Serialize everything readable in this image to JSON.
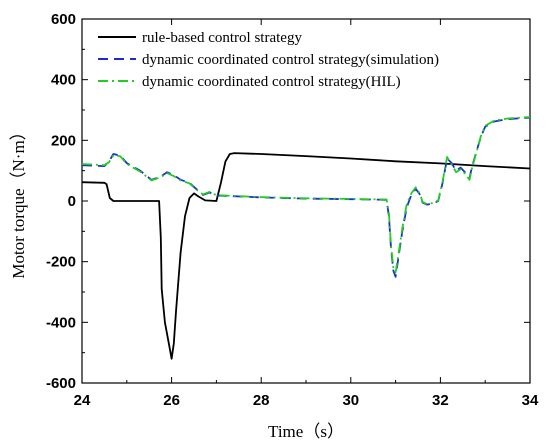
{
  "chart_data": {
    "type": "line",
    "xlabel": "Time（s）",
    "ylabel": "Motor torque（N·m）",
    "xlim": [
      24,
      34
    ],
    "ylim": [
      -600,
      600
    ],
    "xticks": [
      24,
      26,
      28,
      30,
      32,
      34
    ],
    "yticks": [
      -600,
      -400,
      -200,
      0,
      200,
      400,
      600
    ],
    "xtick_labels": [
      "24",
      "26",
      "28",
      "30",
      "32",
      "34"
    ],
    "ytick_labels": [
      "-600",
      "-400",
      "-200",
      "0",
      "200",
      "400",
      "600"
    ],
    "grid": false,
    "legend_position": "top-left",
    "series": [
      {
        "name": "rule-based control strategy",
        "color": "#000000",
        "style": "solid",
        "points": [
          [
            24,
            62
          ],
          [
            24.5,
            60
          ],
          [
            24.55,
            55
          ],
          [
            24.62,
            10
          ],
          [
            24.7,
            0
          ],
          [
            25.0,
            0
          ],
          [
            25.5,
            0
          ],
          [
            25.72,
            0
          ],
          [
            25.76,
            -120
          ],
          [
            25.78,
            -290
          ],
          [
            25.85,
            -400
          ],
          [
            25.95,
            -480
          ],
          [
            26.0,
            -520
          ],
          [
            26.05,
            -470
          ],
          [
            26.1,
            -360
          ],
          [
            26.2,
            -170
          ],
          [
            26.3,
            -50
          ],
          [
            26.4,
            10
          ],
          [
            26.5,
            25
          ],
          [
            26.6,
            15
          ],
          [
            26.75,
            2
          ],
          [
            27.0,
            0
          ],
          [
            27.1,
            60
          ],
          [
            27.2,
            130
          ],
          [
            27.3,
            155
          ],
          [
            27.4,
            158
          ],
          [
            28,
            155
          ],
          [
            29,
            148
          ],
          [
            30,
            140
          ],
          [
            31,
            131
          ],
          [
            32,
            124
          ],
          [
            33,
            115
          ],
          [
            34,
            107
          ]
        ]
      },
      {
        "name": "dynamic coordinated control strategy(simulation)",
        "color": "#1f2bd1",
        "style": "dashed",
        "points": [
          [
            24,
            118
          ],
          [
            24.5,
            115
          ],
          [
            24.6,
            130
          ],
          [
            24.7,
            155
          ],
          [
            24.85,
            150
          ],
          [
            25.0,
            125
          ],
          [
            25.3,
            100
          ],
          [
            25.55,
            70
          ],
          [
            25.75,
            80
          ],
          [
            25.9,
            95
          ],
          [
            26.05,
            85
          ],
          [
            26.2,
            70
          ],
          [
            26.4,
            60
          ],
          [
            26.55,
            40
          ],
          [
            26.7,
            20
          ],
          [
            26.85,
            28
          ],
          [
            27,
            18
          ],
          [
            28,
            12
          ],
          [
            29,
            8
          ],
          [
            30,
            6
          ],
          [
            30.8,
            4
          ],
          [
            30.85,
            -50
          ],
          [
            30.9,
            -160
          ],
          [
            30.95,
            -230
          ],
          [
            31.0,
            -250
          ],
          [
            31.05,
            -200
          ],
          [
            31.15,
            -100
          ],
          [
            31.25,
            -20
          ],
          [
            31.35,
            20
          ],
          [
            31.45,
            40
          ],
          [
            31.55,
            20
          ],
          [
            31.6,
            -5
          ],
          [
            31.7,
            -12
          ],
          [
            31.85,
            -8
          ],
          [
            31.95,
            0
          ],
          [
            32.05,
            60
          ],
          [
            32.15,
            140
          ],
          [
            32.25,
            125
          ],
          [
            32.35,
            100
          ],
          [
            32.45,
            110
          ],
          [
            32.55,
            95
          ],
          [
            32.65,
            75
          ],
          [
            32.7,
            110
          ],
          [
            32.8,
            160
          ],
          [
            32.9,
            210
          ],
          [
            33.0,
            245
          ],
          [
            33.2,
            262
          ],
          [
            33.5,
            270
          ],
          [
            34,
            275
          ]
        ]
      },
      {
        "name": "dynamic coordinated control strategy(HIL)",
        "color": "#22cc22",
        "style": "dashdot",
        "points": [
          [
            24,
            122
          ],
          [
            24.5,
            118
          ],
          [
            24.6,
            128
          ],
          [
            24.7,
            150
          ],
          [
            24.85,
            148
          ],
          [
            25.0,
            122
          ],
          [
            25.3,
            97
          ],
          [
            25.55,
            68
          ],
          [
            25.75,
            78
          ],
          [
            25.9,
            92
          ],
          [
            26.05,
            82
          ],
          [
            26.2,
            68
          ],
          [
            26.4,
            58
          ],
          [
            26.55,
            38
          ],
          [
            26.7,
            22
          ],
          [
            26.85,
            30
          ],
          [
            27,
            19
          ],
          [
            28,
            13
          ],
          [
            29,
            9
          ],
          [
            30,
            7
          ],
          [
            30.8,
            5
          ],
          [
            30.85,
            -40
          ],
          [
            30.9,
            -150
          ],
          [
            30.95,
            -220
          ],
          [
            31.0,
            -235
          ],
          [
            31.05,
            -190
          ],
          [
            31.15,
            -90
          ],
          [
            31.25,
            -10
          ],
          [
            31.35,
            25
          ],
          [
            31.45,
            45
          ],
          [
            31.55,
            22
          ],
          [
            31.6,
            -3
          ],
          [
            31.7,
            -10
          ],
          [
            31.85,
            -6
          ],
          [
            31.95,
            2
          ],
          [
            32.05,
            65
          ],
          [
            32.15,
            145
          ],
          [
            32.25,
            120
          ],
          [
            32.35,
            95
          ],
          [
            32.45,
            105
          ],
          [
            32.55,
            90
          ],
          [
            32.65,
            70
          ],
          [
            32.7,
            105
          ],
          [
            32.8,
            158
          ],
          [
            32.9,
            212
          ],
          [
            33.0,
            248
          ],
          [
            33.2,
            265
          ],
          [
            33.5,
            272
          ],
          [
            34,
            277
          ]
        ]
      }
    ]
  }
}
